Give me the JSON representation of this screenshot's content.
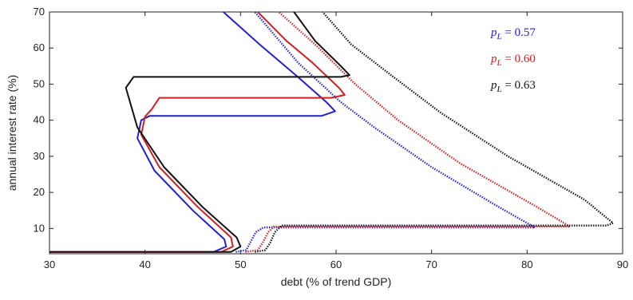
{
  "chart_data": {
    "type": "line",
    "title": "",
    "xlabel": "debt (% of trend GDP)",
    "ylabel": "annual interest rate (%)",
    "xlim": [
      30,
      90
    ],
    "ylim": [
      3,
      70
    ],
    "xticks": [
      30,
      40,
      50,
      60,
      70,
      80,
      90
    ],
    "yticks": [
      10,
      20,
      30,
      40,
      50,
      60,
      70
    ],
    "grid": false,
    "legend_position": "top-right",
    "series": [
      {
        "name": "p_L = 0.57",
        "legend_label": "pL = 0.57",
        "color": "#2222cc",
        "solid": [
          [
            30,
            3.5
          ],
          [
            47.2,
            3.5
          ],
          [
            48.5,
            5
          ],
          [
            48.3,
            7
          ],
          [
            45,
            15
          ],
          [
            41,
            26
          ],
          [
            39.2,
            35
          ],
          [
            39.6,
            40
          ],
          [
            40.5,
            41.2
          ],
          [
            58.5,
            41.2
          ],
          [
            59.9,
            42.5
          ],
          [
            59,
            45
          ],
          [
            56,
            52
          ],
          [
            52,
            61
          ],
          [
            48.2,
            70
          ]
        ],
        "dotted": [
          [
            49.5,
            3.5
          ],
          [
            50.6,
            4
          ],
          [
            51,
            6
          ],
          [
            51.6,
            9
          ],
          [
            52.4,
            10.3
          ],
          [
            80.8,
            10.3
          ],
          [
            77,
            16
          ],
          [
            70,
            27
          ],
          [
            64,
            38
          ],
          [
            60.5,
            45
          ],
          [
            56,
            56
          ],
          [
            51.5,
            70
          ]
        ]
      },
      {
        "name": "p_L = 0.60",
        "legend_label": "pL = 0.60",
        "color": "#cc2222",
        "solid": [
          [
            30,
            3.5
          ],
          [
            48,
            3.5
          ],
          [
            49.2,
            5
          ],
          [
            49,
            7.5
          ],
          [
            45.5,
            16
          ],
          [
            41.5,
            27
          ],
          [
            39.6,
            36
          ],
          [
            40,
            41
          ],
          [
            40.7,
            43
          ],
          [
            41.5,
            46.2
          ],
          [
            59.5,
            46.2
          ],
          [
            60.9,
            47
          ],
          [
            60.3,
            49
          ],
          [
            57.5,
            56
          ],
          [
            54.8,
            62
          ],
          [
            51.8,
            70
          ]
        ],
        "dotted": [
          [
            50.5,
            3.5
          ],
          [
            51.8,
            4
          ],
          [
            52.3,
            6
          ],
          [
            52.9,
            9
          ],
          [
            53.5,
            10.5
          ],
          [
            84.5,
            10.5
          ],
          [
            81,
            16
          ],
          [
            73,
            28
          ],
          [
            66.5,
            40
          ],
          [
            62,
            50
          ],
          [
            57.8,
            61
          ],
          [
            54,
            70
          ]
        ]
      },
      {
        "name": "p_L = 0.63",
        "legend_label": "pL = 0.63",
        "color": "#111111",
        "solid": [
          [
            30,
            3.5
          ],
          [
            49,
            3.5
          ],
          [
            50,
            5
          ],
          [
            49.6,
            7.5
          ],
          [
            46,
            16
          ],
          [
            42,
            27
          ],
          [
            39.2,
            38
          ],
          [
            38,
            49
          ],
          [
            38.8,
            52
          ],
          [
            60.5,
            52
          ],
          [
            61.4,
            52.5
          ],
          [
            60.5,
            55
          ],
          [
            57.8,
            62
          ],
          [
            55.6,
            70
          ]
        ],
        "dotted": [
          [
            51.5,
            3.5
          ],
          [
            52.6,
            4
          ],
          [
            53.1,
            6
          ],
          [
            53.6,
            9
          ],
          [
            54.3,
            10.8
          ],
          [
            88.3,
            10.8
          ],
          [
            89,
            11.5
          ],
          [
            86,
            18
          ],
          [
            78,
            30
          ],
          [
            71,
            42
          ],
          [
            66,
            52
          ],
          [
            61.6,
            61
          ],
          [
            58.6,
            70
          ]
        ]
      }
    ]
  }
}
